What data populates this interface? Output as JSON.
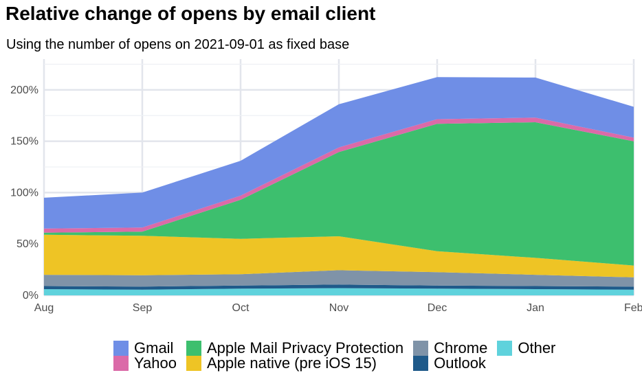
{
  "chart_data": {
    "type": "area",
    "stacked": true,
    "title": "Relative change of opens by email client",
    "subtitle": "Using the number of opens on 2021-09-01 as fixed base",
    "categories": [
      "Aug",
      "Sep",
      "Oct",
      "Nov",
      "Dec",
      "Jan",
      "Feb"
    ],
    "y_unit": "%",
    "ylim": [
      0,
      230
    ],
    "yticks": [
      0,
      50,
      100,
      150,
      200
    ],
    "ytick_labels": [
      "0%",
      "50%",
      "100%",
      "150%",
      "200%"
    ],
    "grid": true,
    "legend_position": "bottom",
    "series": [
      {
        "name": "Other",
        "color": "#5fd2dc",
        "values": [
          6,
          5.5,
          6.5,
          7,
          6.5,
          6,
          5.5
        ]
      },
      {
        "name": "Outlook",
        "color": "#1f5a8a",
        "values": [
          3,
          3,
          3,
          3.5,
          3,
          3,
          3
        ]
      },
      {
        "name": "Chrome",
        "color": "#7f93a8",
        "values": [
          11,
          11,
          11,
          14,
          13,
          11,
          9
        ]
      },
      {
        "name": "Apple native (pre iOS 15)",
        "color": "#eec425",
        "values": [
          39,
          38.5,
          34.5,
          33,
          20.5,
          16.5,
          11.5
        ]
      },
      {
        "name": "Apple Mail Privacy Protection",
        "color": "#3dbf6e",
        "values": [
          2,
          4,
          38,
          82,
          124,
          132,
          121
        ]
      },
      {
        "name": "Yahoo",
        "color": "#db6aa8",
        "values": [
          4,
          4,
          4,
          4.5,
          4.5,
          4.5,
          3.5
        ]
      },
      {
        "name": "Gmail",
        "color": "#6f8ee6",
        "values": [
          30,
          34,
          34,
          42,
          41,
          39,
          30
        ]
      }
    ]
  },
  "legend": [
    {
      "label": "Gmail",
      "color": "#6f8ee6"
    },
    {
      "label": "Apple Mail Privacy Protection",
      "color": "#3dbf6e"
    },
    {
      "label": "Chrome",
      "color": "#7f93a8"
    },
    {
      "label": "Other",
      "color": "#5fd2dc"
    },
    {
      "label": "Yahoo",
      "color": "#db6aa8"
    },
    {
      "label": "Apple native (pre iOS 15)",
      "color": "#eec425"
    },
    {
      "label": "Outlook",
      "color": "#1f5a8a"
    }
  ]
}
